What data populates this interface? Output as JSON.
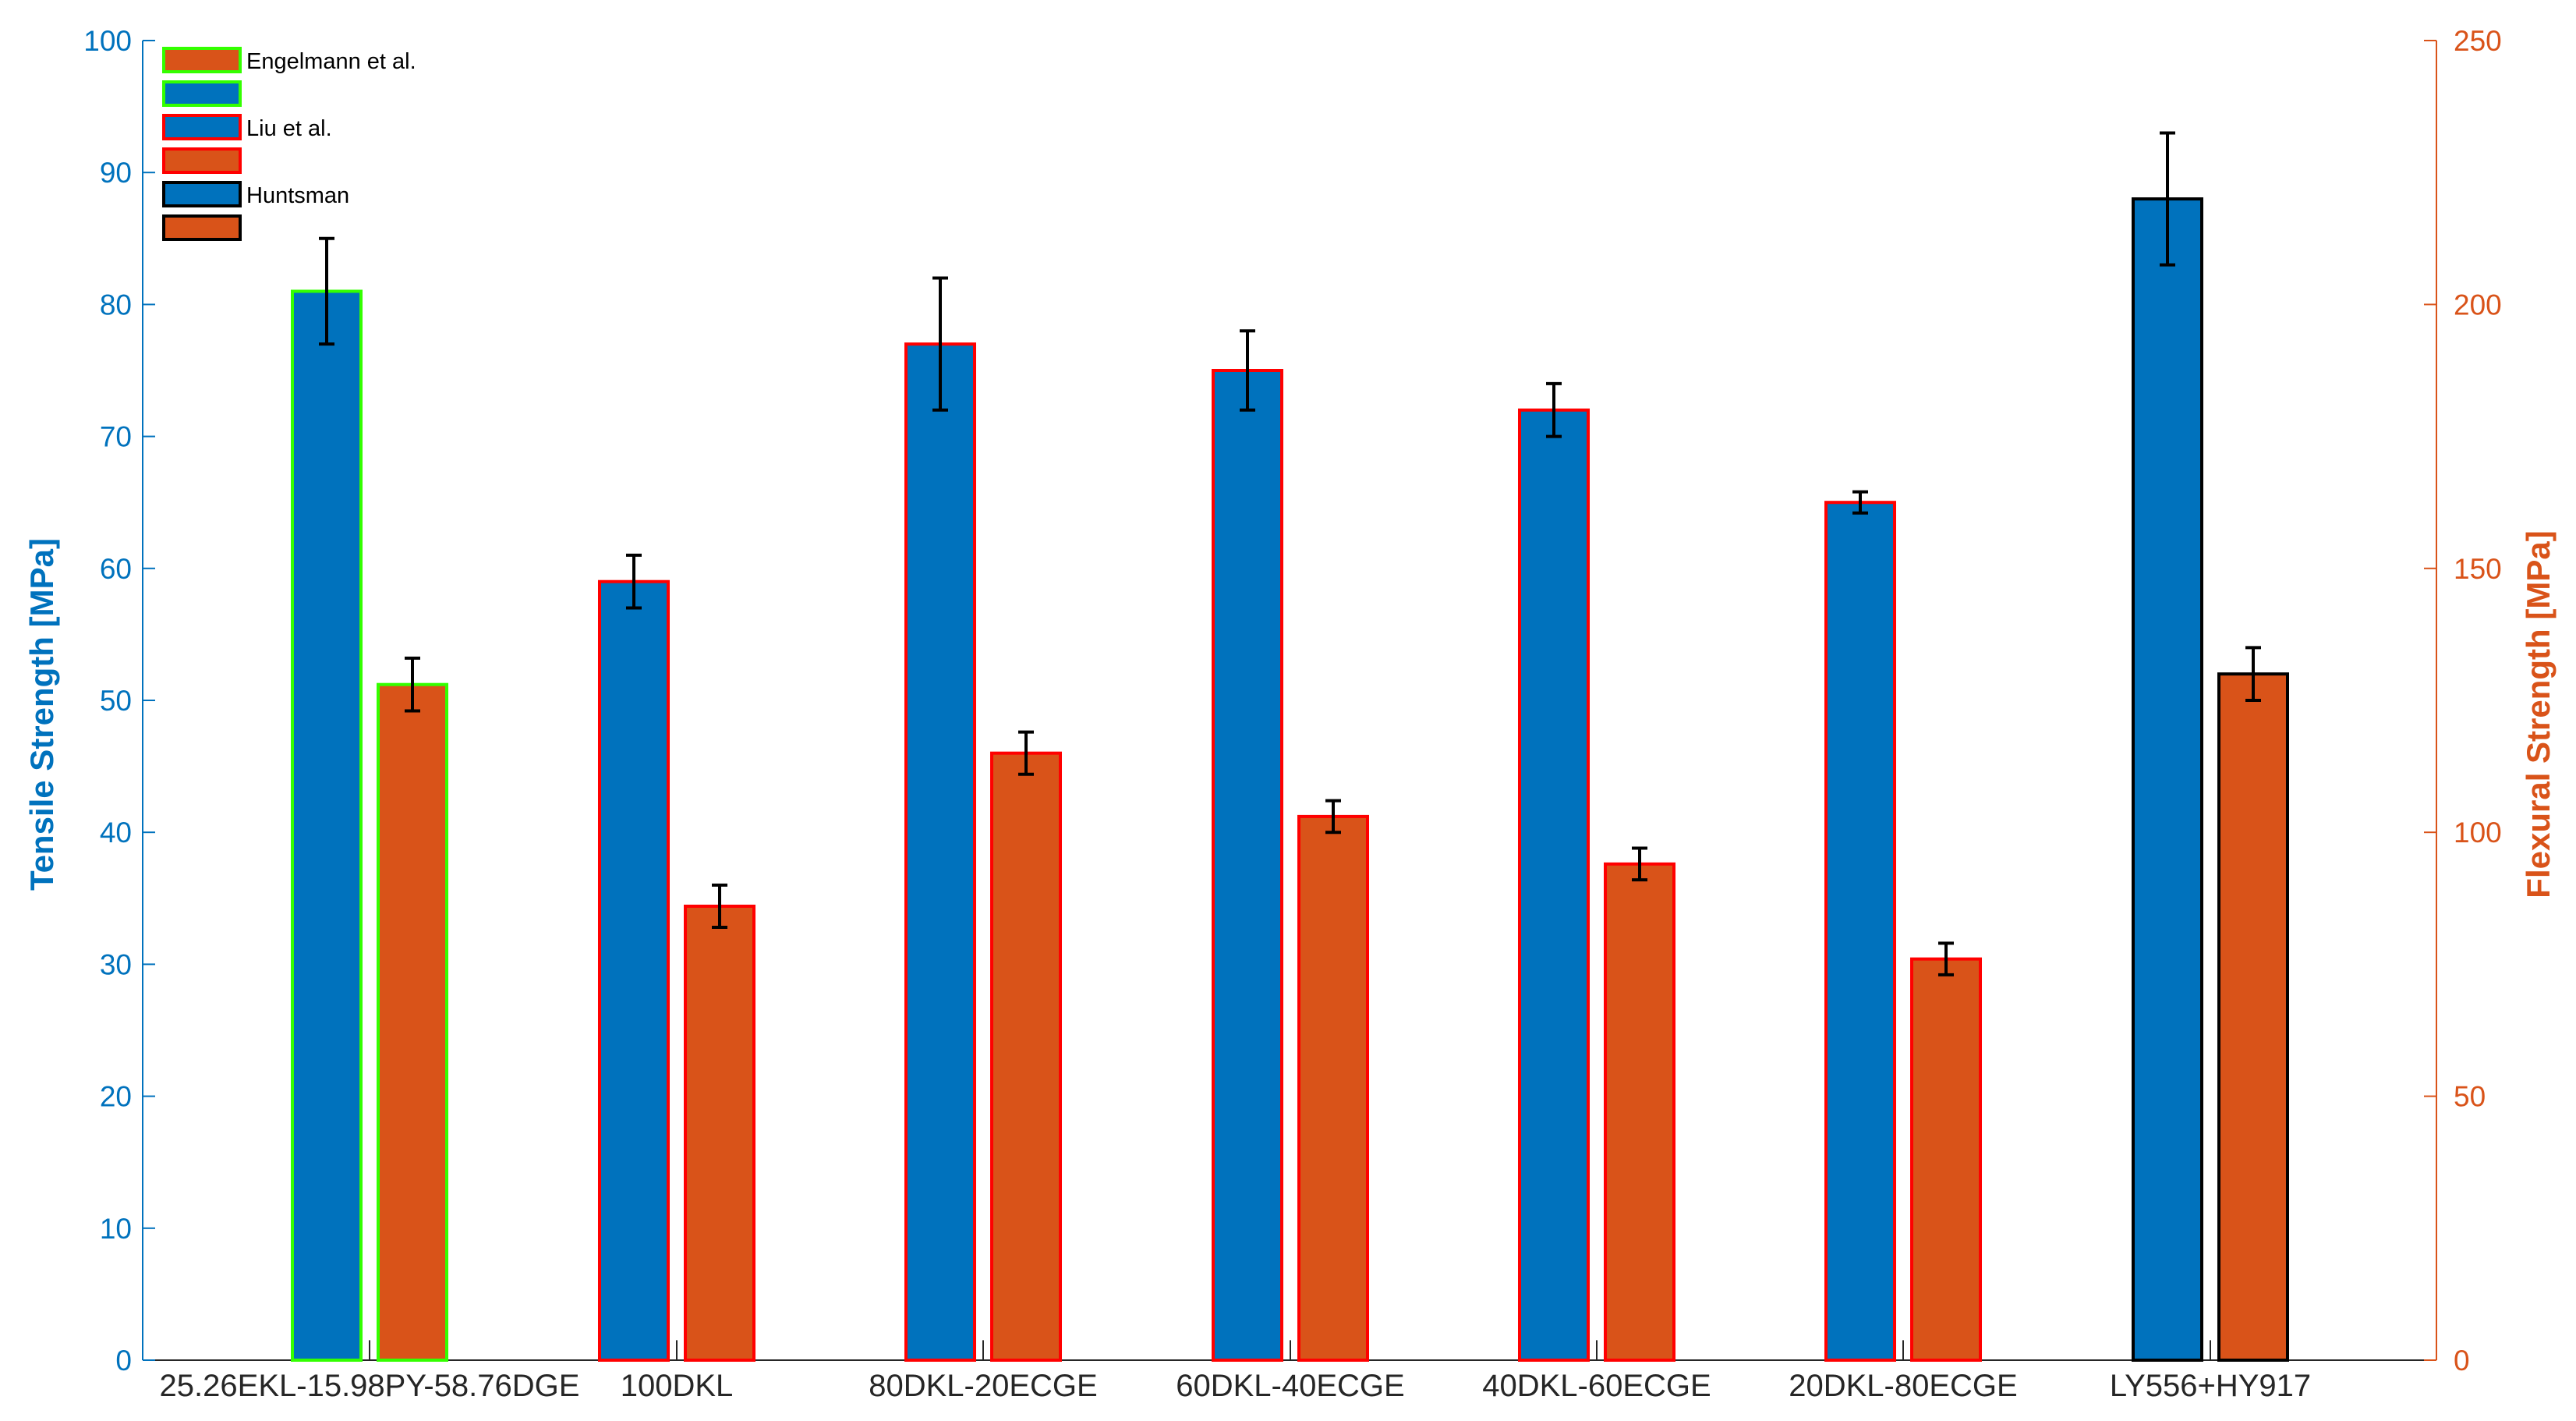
{
  "chart_data": {
    "type": "bar",
    "categories": [
      "25.26EKL-15.98PY-58.76DGE",
      "100DKL",
      "80DKL-20ECGE",
      "60DKL-40ECGE",
      "40DKL-60ECGE",
      "20DKL-80ECGE",
      "LY556+HY917"
    ],
    "groups": [
      "Engelmann et al.",
      "Liu et al.",
      "Liu et al.",
      "Liu et al.",
      "Liu et al.",
      "Liu et al.",
      "Huntsman"
    ],
    "series": [
      {
        "axis": "left",
        "color": "#0072BD",
        "values": [
          81,
          59,
          77,
          75,
          72,
          65,
          88
        ],
        "error": [
          4,
          2,
          5,
          3,
          2,
          0.8,
          5
        ]
      },
      {
        "axis": "right",
        "color": "#D95319",
        "values": [
          128,
          86,
          115,
          103,
          94,
          76,
          130
        ],
        "error": [
          5,
          4,
          4,
          3,
          3,
          3,
          5
        ]
      }
    ],
    "ylabel": "Tensile Strength [MPa]",
    "ylim": [
      0,
      100
    ],
    "yticks": [
      "0",
      "10",
      "20",
      "30",
      "40",
      "50",
      "60",
      "70",
      "80",
      "90",
      "100"
    ],
    "y2label": "Flexural Strength [MPa]",
    "y2lim": [
      0,
      250
    ],
    "y2ticks": [
      "0",
      "50",
      "100",
      "150",
      "200",
      "250"
    ],
    "legend": {
      "position": "top-left",
      "entries": [
        {
          "label": "Engelmann et al.",
          "edge": "#33FF00",
          "fill": "#D95319"
        },
        {
          "label": "",
          "edge": "#33FF00",
          "fill": "#0072BD"
        },
        {
          "label": "Liu et al.",
          "edge": "#FF0000",
          "fill": "#0072BD"
        },
        {
          "label": "",
          "edge": "#FF0000",
          "fill": "#D95319"
        },
        {
          "label": "Huntsman",
          "edge": "#000000",
          "fill": "#0072BD"
        },
        {
          "label": "",
          "edge": "#000000",
          "fill": "#D95319"
        }
      ]
    },
    "group_edge_colors": {
      "Engelmann et al.": "#33FF00",
      "Liu et al.": "#FF0000",
      "Huntsman": "#000000"
    },
    "grid": false
  }
}
